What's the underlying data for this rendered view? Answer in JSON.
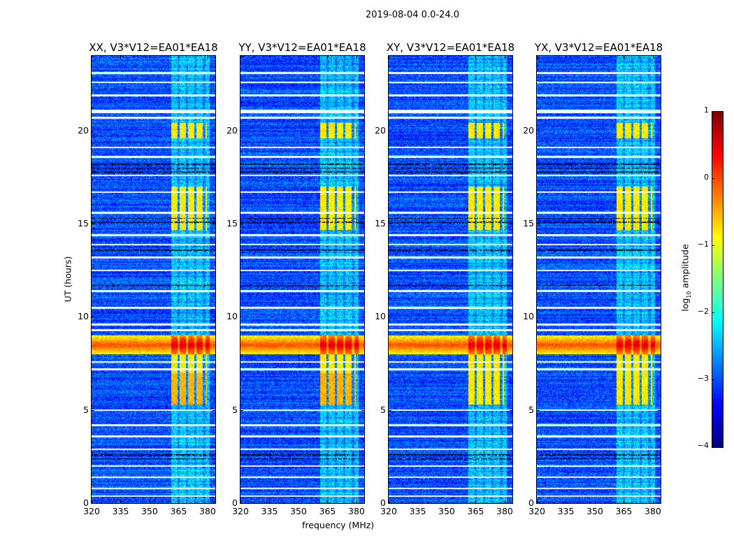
{
  "chart_data": {
    "type": "heatmap",
    "title": "2019-08-04 0.0-24.0",
    "xlabel": "frequency (MHz)",
    "ylabel": "UT (hours)",
    "xlim": [
      320,
      384
    ],
    "ylim": [
      0,
      24
    ],
    "xticks": [
      "320",
      "335",
      "350",
      "365",
      "380"
    ],
    "yticks": [
      "0",
      "5",
      "10",
      "15",
      "20"
    ],
    "xtick_values": [
      320,
      335,
      350,
      365,
      380
    ],
    "ytick_values": [
      0,
      5,
      10,
      15,
      20
    ],
    "panels": [
      {
        "title": "XX, V3*V12=EA01*EA18"
      },
      {
        "title": "YY, V3*V12=EA01*EA18"
      },
      {
        "title": "XY, V3*V12=EA01*EA18"
      },
      {
        "title": "YX, V3*V12=EA01*EA18"
      }
    ],
    "colorbar": {
      "label": "log",
      "label_sub": "10",
      "label_rest": " amplitude",
      "range": [
        -4,
        1
      ],
      "ticks": [
        "1",
        "0",
        "−1",
        "−2",
        "−3",
        "−4"
      ],
      "tick_values": [
        1,
        0,
        -1,
        -2,
        -3,
        -4
      ],
      "colormap": "jet"
    },
    "features": {
      "background_level": -3.0,
      "rfi_band_mhz": [
        361,
        381
      ],
      "rfi_band_level": -2.3,
      "strong_rfi_hours": [
        [
          8.0,
          9.0
        ]
      ],
      "strong_rfi_level": 0.0,
      "band_bursts_hours": [
        [
          5.3,
          8.0
        ],
        [
          14.7,
          17.0
        ],
        [
          19.6,
          20.4
        ]
      ],
      "band_burst_level": -0.8,
      "flagged_hours": [
        0.4,
        0.8,
        1.4,
        2.0,
        2.9,
        3.6,
        4.2,
        5.0,
        7.2,
        7.6,
        9.3,
        9.6,
        10.5,
        11.4,
        12.5,
        13.2,
        13.9,
        14.4,
        15.6,
        16.7,
        17.6,
        18.6,
        19.1,
        20.7,
        21.0,
        21.9,
        22.6,
        23.1
      ],
      "dropout_hours": [
        2.4,
        2.6,
        15.1,
        15.3,
        17.8,
        18.0,
        18.2,
        13.6,
        11.7
      ]
    }
  }
}
